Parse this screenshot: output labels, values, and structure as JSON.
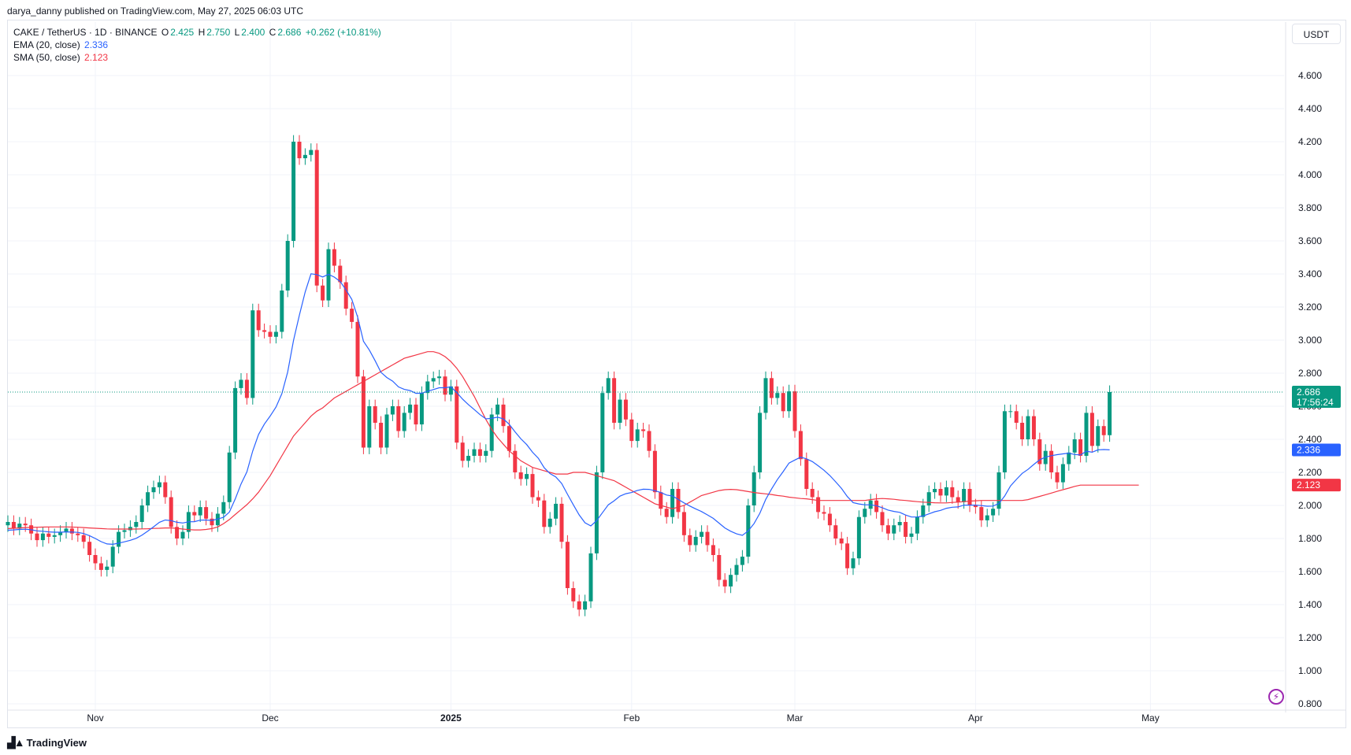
{
  "header": {
    "publish_text": "darya_danny published on TradingView.com, May 27, 2025 06:03 UTC"
  },
  "legend": {
    "symbol": "CAKE / TetherUS · 1D · BINANCE",
    "o_label": "O",
    "o_value": "2.425",
    "h_label": "H",
    "h_value": "2.750",
    "l_label": "L",
    "l_value": "2.400",
    "c_label": "C",
    "c_value": "2.686",
    "change": "+0.262 (+10.81%)",
    "ema_label": "EMA (20, close)",
    "ema_value": "2.336",
    "sma_label": "SMA (50, close)",
    "sma_value": "2.123"
  },
  "currency_button": "USDT",
  "footer": {
    "logo_text": "TradingView"
  },
  "colors": {
    "up": "#089981",
    "down": "#f23645",
    "ema": "#2962ff",
    "sma": "#f23645",
    "grid": "#f0f3fa",
    "price_line": "#089981"
  },
  "icons": {
    "alert": "lightning-alert-icon",
    "logo": "tradingview-logo-icon"
  },
  "chart_data": {
    "type": "candlestick",
    "title": "CAKE / TetherUS · 1D · BINANCE",
    "ylim": [
      0.8,
      4.6
    ],
    "y_ticks": [
      "4.600",
      "4.400",
      "4.200",
      "4.000",
      "3.800",
      "3.600",
      "3.400",
      "3.200",
      "3.000",
      "2.800",
      "2.600",
      "2.400",
      "2.200",
      "2.000",
      "1.800",
      "1.600",
      "1.400",
      "1.200",
      "1.000",
      "0.800"
    ],
    "x_ticks": [
      {
        "label": "Nov",
        "index": 15
      },
      {
        "label": "Dec",
        "index": 45
      },
      {
        "label": "2025",
        "index": 76,
        "bold": true
      },
      {
        "label": "Feb",
        "index": 107
      },
      {
        "label": "Mar",
        "index": 135
      },
      {
        "label": "Apr",
        "index": 166
      },
      {
        "label": "May",
        "index": 196
      }
    ],
    "last_price": {
      "value": 2.686,
      "label": "2.686",
      "countdown": "17:56:24"
    },
    "ema_tag": {
      "value": 2.336,
      "label": "2.336"
    },
    "sma_tag": {
      "value": 2.123,
      "label": "2.123"
    },
    "closes": [
      1.9,
      1.86,
      1.89,
      1.88,
      1.83,
      1.79,
      1.83,
      1.81,
      1.82,
      1.84,
      1.86,
      1.83,
      1.82,
      1.78,
      1.7,
      1.65,
      1.61,
      1.63,
      1.75,
      1.84,
      1.85,
      1.87,
      1.9,
      2.0,
      2.08,
      2.11,
      2.14,
      2.05,
      1.87,
      1.8,
      1.84,
      1.96,
      1.94,
      1.99,
      1.92,
      1.88,
      1.95,
      2.02,
      2.32,
      2.71,
      2.76,
      2.65,
      3.18,
      3.06,
      3.05,
      3.02,
      3.05,
      3.3,
      3.6,
      4.2,
      4.1,
      4.12,
      4.15,
      3.33,
      3.24,
      3.55,
      3.45,
      3.35,
      3.19,
      3.11,
      2.78,
      2.35,
      2.6,
      2.5,
      2.35,
      2.55,
      2.6,
      2.45,
      2.56,
      2.61,
      2.49,
      2.68,
      2.75,
      2.77,
      2.78,
      2.67,
      2.72,
      2.38,
      2.27,
      2.3,
      2.34,
      2.3,
      2.33,
      2.55,
      2.61,
      2.48,
      2.33,
      2.2,
      2.16,
      2.19,
      2.05,
      2.03,
      1.87,
      1.92,
      2.01,
      1.78,
      1.5,
      1.42,
      1.37,
      1.42,
      1.71,
      2.2,
      2.68,
      2.77,
      2.5,
      2.64,
      2.52,
      2.39,
      2.46,
      2.45,
      2.33,
      2.08,
      1.98,
      1.93,
      2.1,
      1.96,
      1.82,
      1.76,
      1.81,
      1.84,
      1.76,
      1.7,
      1.55,
      1.51,
      1.58,
      1.64,
      1.69,
      2.0,
      2.2,
      2.56,
      2.77,
      2.65,
      2.68,
      2.57,
      2.69,
      2.45,
      2.28,
      2.1,
      2.05,
      1.96,
      1.95,
      1.88,
      1.8,
      1.77,
      1.62,
      1.68,
      1.93,
      1.98,
      2.03,
      1.96,
      1.88,
      1.83,
      1.88,
      1.9,
      1.81,
      1.83,
      1.93,
      2.0,
      2.08,
      2.1,
      2.06,
      2.11,
      2.05,
      2.02,
      2.1,
      2.0,
      1.99,
      1.91,
      1.94,
      1.98,
      2.2,
      2.57,
      2.57,
      2.5,
      2.4,
      2.54,
      2.4,
      2.25,
      2.33,
      2.2,
      2.14,
      2.25,
      2.32,
      2.4,
      2.3,
      2.56,
      2.36,
      2.48,
      2.425,
      2.686
    ],
    "ema": [
      1.85,
      1.852,
      1.855,
      1.856,
      1.853,
      1.846,
      1.844,
      1.84,
      1.838,
      1.838,
      1.84,
      1.839,
      1.837,
      1.83,
      1.817,
      1.8,
      1.781,
      1.767,
      1.765,
      1.772,
      1.78,
      1.789,
      1.801,
      1.82,
      1.845,
      1.871,
      1.898,
      1.912,
      1.908,
      1.898,
      1.894,
      1.901,
      1.902,
      1.911,
      1.912,
      1.909,
      1.918,
      1.928,
      1.96,
      2.039,
      2.13,
      2.203,
      2.329,
      2.429,
      2.492,
      2.541,
      2.595,
      2.676,
      2.807,
      2.998,
      3.15,
      3.291,
      3.401,
      3.396,
      3.382,
      3.398,
      3.381,
      3.355,
      3.304,
      3.246,
      3.139,
      2.993,
      2.94,
      2.875,
      2.805,
      2.774,
      2.752,
      2.717,
      2.702,
      2.695,
      2.678,
      2.679,
      2.69,
      2.701,
      2.712,
      2.712,
      2.717,
      2.683,
      2.643,
      2.61,
      2.58,
      2.549,
      2.524,
      2.527,
      2.534,
      2.524,
      2.491,
      2.445,
      2.403,
      2.368,
      2.322,
      2.285,
      2.228,
      2.193,
      2.172,
      2.133,
      2.067,
      2.004,
      1.943,
      1.895,
      1.876,
      1.908,
      1.956,
      2.004,
      2.028,
      2.056,
      2.071,
      2.078,
      2.091,
      2.098,
      2.097,
      2.089,
      2.078,
      2.063,
      2.057,
      2.036,
      2.015,
      1.996,
      1.979,
      1.963,
      1.943,
      1.922,
      1.893,
      1.864,
      1.844,
      1.828,
      1.819,
      1.846,
      1.89,
      1.953,
      2.036,
      2.099,
      2.156,
      2.205,
      2.256,
      2.275,
      2.292,
      2.282,
      2.265,
      2.24,
      2.213,
      2.181,
      2.143,
      2.103,
      2.054,
      2.017,
      2.009,
      2.004,
      2.004,
      1.998,
      1.986,
      1.972,
      1.964,
      1.958,
      1.942,
      1.93,
      1.93,
      1.936,
      1.949,
      1.962,
      1.97,
      1.983,
      1.989,
      1.991,
      2.002,
      2.002,
      2.002,
      1.999,
      1.995,
      1.996,
      2.012,
      2.057,
      2.118,
      2.157,
      2.194,
      2.218,
      2.248,
      2.276,
      2.292,
      2.301,
      2.307,
      2.312,
      2.316,
      2.308,
      2.305,
      2.328,
      2.322,
      2.336,
      2.338,
      2.336
    ],
    "sma": [
      1.86,
      1.862,
      1.864,
      1.866,
      1.867,
      1.868,
      1.869,
      1.87,
      1.87,
      1.87,
      1.87,
      1.869,
      1.868,
      1.866,
      1.864,
      1.862,
      1.86,
      1.858,
      1.857,
      1.857,
      1.857,
      1.857,
      1.857,
      1.858,
      1.859,
      1.861,
      1.862,
      1.864,
      1.864,
      1.861,
      1.857,
      1.854,
      1.852,
      1.852,
      1.855,
      1.86,
      1.87,
      1.89,
      1.915,
      1.945,
      1.975,
      2.005,
      2.04,
      2.08,
      2.13,
      2.18,
      2.24,
      2.3,
      2.36,
      2.42,
      2.46,
      2.5,
      2.54,
      2.57,
      2.59,
      2.62,
      2.65,
      2.67,
      2.69,
      2.71,
      2.73,
      2.75,
      2.77,
      2.79,
      2.81,
      2.83,
      2.85,
      2.87,
      2.89,
      2.9,
      2.91,
      2.92,
      2.93,
      2.93,
      2.92,
      2.9,
      2.87,
      2.83,
      2.78,
      2.72,
      2.66,
      2.59,
      2.52,
      2.46,
      2.41,
      2.37,
      2.33,
      2.3,
      2.27,
      2.25,
      2.23,
      2.22,
      2.21,
      2.2,
      2.19,
      2.19,
      2.19,
      2.2,
      2.2,
      2.2,
      2.19,
      2.18,
      2.17,
      2.16,
      2.15,
      2.13,
      2.11,
      2.09,
      2.07,
      2.05,
      2.03,
      2.01,
      2.0,
      1.99,
      1.98,
      1.99,
      2.0,
      2.02,
      2.04,
      2.06,
      2.07,
      2.08,
      2.09,
      2.095,
      2.097,
      2.095,
      2.09,
      2.084,
      2.078,
      2.074,
      2.07,
      2.066,
      2.06,
      2.056,
      2.05,
      2.046,
      2.042,
      2.04,
      2.035,
      2.03,
      2.03,
      2.03,
      2.03,
      2.03,
      2.03,
      2.03,
      2.03,
      2.03,
      2.035,
      2.04,
      2.042,
      2.04,
      2.037,
      2.033,
      2.03,
      2.026,
      2.023,
      2.02,
      2.018,
      2.016,
      2.015,
      2.015,
      2.018,
      2.02,
      2.023,
      2.026,
      2.028,
      2.03,
      2.03,
      2.03,
      2.03,
      2.03,
      2.03,
      2.03,
      2.03,
      2.035,
      2.045,
      2.055,
      2.065,
      2.075,
      2.085,
      2.095,
      2.105,
      2.115,
      2.123,
      2.123,
      2.123,
      2.123,
      2.123,
      2.123,
      2.123,
      2.123,
      2.123,
      2.123,
      2.123
    ]
  }
}
